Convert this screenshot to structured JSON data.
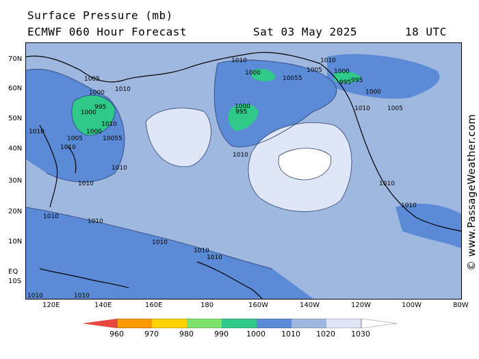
{
  "header": {
    "title": "Surface Pressure (mb)",
    "model": "ECMWF 060 Hour Forecast",
    "date": "Sat 03 May 2025",
    "time": "18 UTC"
  },
  "credit": "© www.PassageWeather.com",
  "axes": {
    "lat_labels": [
      "70N",
      "60N",
      "50N",
      "40N",
      "30N",
      "20N",
      "10N",
      "EQ",
      "10S"
    ],
    "lon_labels": [
      "120E",
      "140E",
      "160E",
      "180",
      "160W",
      "140W",
      "120W",
      "100W",
      "80W"
    ]
  },
  "legend": {
    "values": [
      "960",
      "970",
      "980",
      "990",
      "1000",
      "1010",
      "1020",
      "1030"
    ],
    "colors": [
      "#e8473d",
      "#ff9900",
      "#ffd200",
      "#7ee36b",
      "#2fc98a",
      "#5b8ad6",
      "#9fb8e0",
      "#dfe6f5",
      "#ffffff"
    ]
  },
  "pressure_labels": [
    {
      "text": "1010"
    },
    {
      "text": "1005"
    },
    {
      "text": "1000"
    },
    {
      "text": "1010"
    },
    {
      "text": "1000"
    },
    {
      "text": "995"
    },
    {
      "text": "1000"
    },
    {
      "text": "1010"
    },
    {
      "text": "1005"
    },
    {
      "text": "10055"
    },
    {
      "text": "1010"
    },
    {
      "text": "1010"
    },
    {
      "text": "1000"
    },
    {
      "text": "1000"
    },
    {
      "text": "10055"
    },
    {
      "text": "1005"
    },
    {
      "text": "1010"
    },
    {
      "text": "1000"
    },
    {
      "text": "995"
    },
    {
      "text": "995"
    },
    {
      "text": "1000"
    },
    {
      "text": "995"
    },
    {
      "text": "1010"
    },
    {
      "text": "1005"
    },
    {
      "text": "1010"
    },
    {
      "text": "1010"
    },
    {
      "text": "1010"
    },
    {
      "text": "1010"
    },
    {
      "text": "1010"
    },
    {
      "text": "1010"
    },
    {
      "text": "1010"
    },
    {
      "text": "1010"
    },
    {
      "text": "1010"
    },
    {
      "text": "1010"
    },
    {
      "text": "1010"
    },
    {
      "text": "1010"
    }
  ]
}
